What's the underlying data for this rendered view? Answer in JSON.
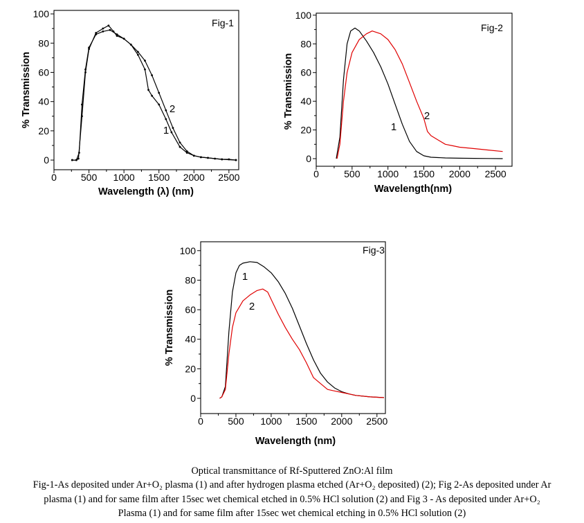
{
  "chart_data": [
    {
      "type": "line",
      "title": "Fig-1",
      "xlabel": "Wavelength (λ) (nm)",
      "ylabel": "% Transmission",
      "xlim": [
        0,
        2640
      ],
      "ylim": [
        -6.6,
        102.4
      ],
      "xticks": [
        0,
        500,
        1000,
        1500,
        2000,
        2500
      ],
      "yticks": [
        0,
        20,
        40,
        60,
        80,
        100
      ],
      "grid": false,
      "series": [
        {
          "name": "1",
          "color": "#000000",
          "marker": "dot",
          "x": [
            260,
            320,
            350,
            400,
            450,
            500,
            600,
            700,
            780,
            850,
            900,
            1000,
            1100,
            1200,
            1300,
            1350,
            1400,
            1500,
            1600,
            1680,
            1800,
            1900,
            2000,
            2100,
            2200,
            2300,
            2400,
            2500,
            2600
          ],
          "y": [
            0,
            0,
            1,
            30,
            60,
            76,
            87,
            90,
            92,
            88,
            85,
            83,
            79,
            72,
            62,
            48,
            44,
            38,
            28,
            19,
            9,
            5,
            3,
            2,
            1.5,
            1,
            0.5,
            0.5,
            0
          ]
        },
        {
          "name": "2",
          "color": "#000000",
          "marker": "dot",
          "x": [
            260,
            320,
            360,
            400,
            450,
            500,
            600,
            700,
            800,
            900,
            1000,
            1100,
            1200,
            1300,
            1400,
            1500,
            1600,
            1700,
            1800,
            1900,
            2000,
            2100,
            2200,
            2400,
            2600
          ],
          "y": [
            0,
            0,
            5,
            38,
            62,
            77,
            86,
            88,
            89,
            86,
            83,
            79,
            74,
            68,
            58,
            46,
            34,
            22,
            12,
            6,
            3,
            2,
            1.5,
            0.5,
            0
          ]
        }
      ]
    },
    {
      "type": "line",
      "title": "Fig-2",
      "xlabel": "Wavelength(nm)",
      "ylabel": "% Transmission",
      "xlim": [
        0,
        2730
      ],
      "ylim": [
        -5.3,
        101.4
      ],
      "xticks": [
        0,
        500,
        1000,
        1500,
        2000,
        2500
      ],
      "yticks": [
        0,
        20,
        40,
        60,
        80,
        100
      ],
      "grid": false,
      "series": [
        {
          "name": "1",
          "color": "#000000",
          "x": [
            280,
            330,
            380,
            430,
            480,
            540,
            600,
            700,
            800,
            900,
            1000,
            1100,
            1200,
            1300,
            1400,
            1500,
            1600,
            1800,
            2000,
            2200,
            2400,
            2600
          ],
          "y": [
            0,
            15,
            55,
            80,
            89,
            91,
            89,
            82,
            74,
            64,
            52,
            38,
            24,
            12,
            5,
            2,
            1,
            0.5,
            0.3,
            0.2,
            0.1,
            0
          ]
        },
        {
          "name": "2",
          "color": "#e00000",
          "x": [
            290,
            330,
            380,
            430,
            500,
            600,
            700,
            780,
            900,
            1000,
            1100,
            1200,
            1300,
            1400,
            1500,
            1550,
            1600,
            1700,
            1800,
            1900,
            2000,
            2200,
            2400,
            2600
          ],
          "y": [
            0,
            10,
            40,
            60,
            74,
            83,
            87,
            89,
            87,
            83,
            76,
            66,
            53,
            40,
            28,
            19,
            16,
            13,
            10,
            9,
            8,
            7,
            6,
            5
          ]
        }
      ]
    },
    {
      "type": "line",
      "title": "Fig-3",
      "xlabel": "Wavelength (nm)",
      "ylabel": "% Transmission",
      "xlim": [
        0,
        2620
      ],
      "ylim": [
        -10.3,
        106
      ],
      "xticks": [
        0,
        500,
        1000,
        1500,
        2000,
        2500
      ],
      "yticks": [
        0,
        20,
        40,
        60,
        80,
        100
      ],
      "grid": false,
      "series": [
        {
          "name": "1",
          "color": "#000000",
          "x": [
            270,
            300,
            350,
            400,
            450,
            500,
            550,
            600,
            700,
            800,
            900,
            1000,
            1100,
            1200,
            1300,
            1400,
            1500,
            1600,
            1700,
            1800,
            1900,
            2000,
            2100,
            2200,
            2400,
            2600
          ],
          "y": [
            0,
            1,
            8,
            45,
            72,
            85,
            90,
            91.5,
            92.5,
            92,
            89,
            85,
            79,
            71,
            61,
            49,
            37,
            26,
            17,
            11,
            7,
            4.5,
            3,
            2,
            1,
            0.5
          ]
        },
        {
          "name": "2",
          "color": "#e00000",
          "x": [
            270,
            300,
            350,
            400,
            450,
            500,
            600,
            700,
            800,
            880,
            950,
            1000,
            1100,
            1200,
            1300,
            1400,
            1500,
            1600,
            1700,
            1800,
            1900,
            2000,
            2100,
            2200,
            2400,
            2600
          ],
          "y": [
            0,
            1,
            6,
            30,
            48,
            58,
            66,
            70,
            73,
            74,
            72,
            67,
            57,
            48,
            40,
            33,
            24,
            14,
            10,
            6,
            5,
            4,
            3,
            2,
            1,
            0.5
          ]
        }
      ]
    }
  ],
  "caption": {
    "title": "Optical transmittance of Rf-Sputtered ZnO:Al film",
    "lines": [
      "Fig-1-As deposited under Ar+O₂ plasma (1) and after hydrogen plasma etched (Ar+O₂ deposited) (2); Fig 2-As deposited under Ar",
      "plasma (1) and for same film after 15sec wet chemical etched in 0.5% HCl solution (2) and Fig 3 - As deposited under Ar+O₂",
      "Plasma (1) and for same film after 15sec wet chemical etching in 0.5% HCl solution (2)"
    ]
  }
}
